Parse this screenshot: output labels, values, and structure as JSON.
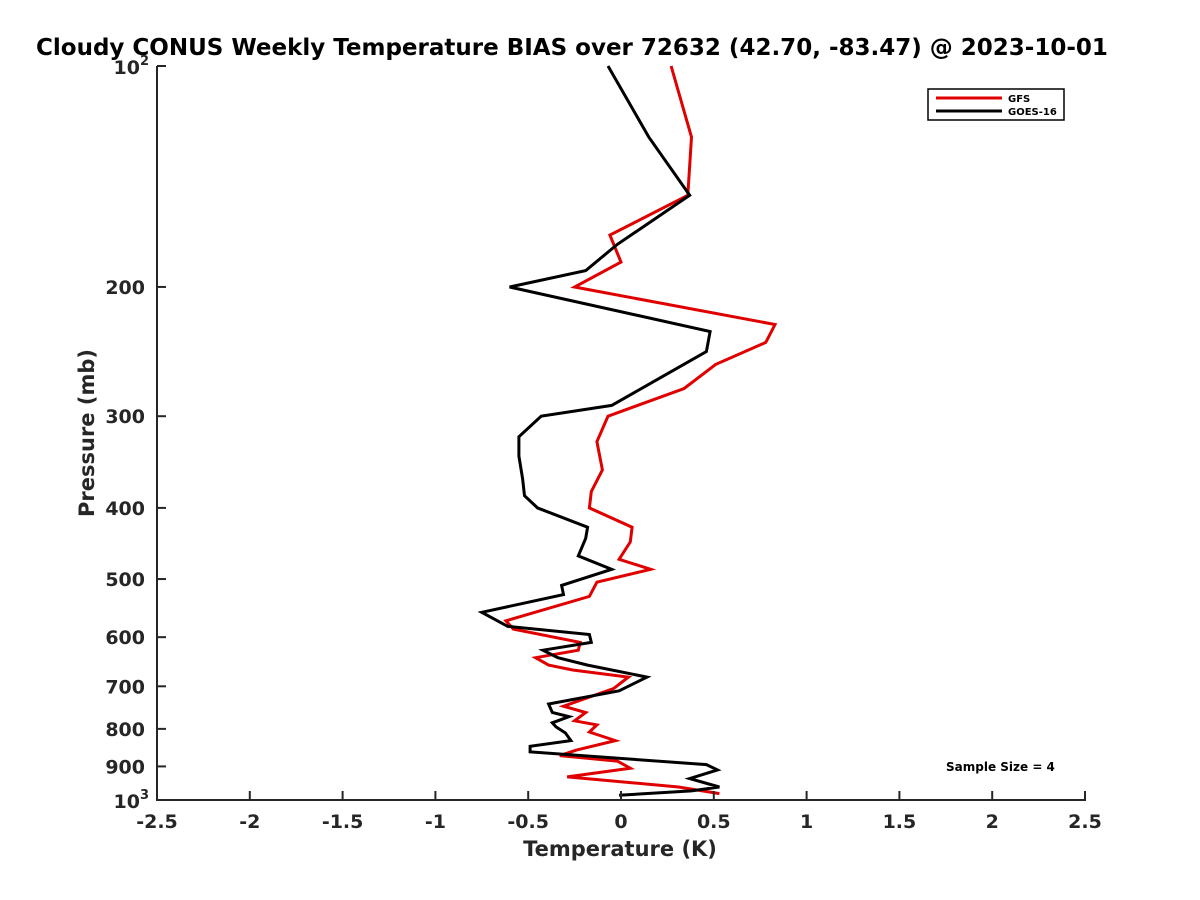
{
  "chart_data": {
    "type": "line",
    "title": "Cloudy CONUS Weekly Temperature BIAS over 72632 (42.70, -83.47) @ 2023-10-01",
    "xlabel": "Temperature (K)",
    "ylabel": "Pressure (mb)",
    "xlim": [
      -2.5,
      2.5
    ],
    "ylim": [
      1000,
      100
    ],
    "y_scale": "log",
    "y_reversed": true,
    "grid": false,
    "legend_position": "top-right",
    "annotation": "Sample Size = 4",
    "x_ticks": [
      {
        "value": -2.5,
        "label": "-2.5"
      },
      {
        "value": -2,
        "label": "-2"
      },
      {
        "value": -1.5,
        "label": "-1.5"
      },
      {
        "value": -1,
        "label": "-1"
      },
      {
        "value": -0.5,
        "label": "-0.5"
      },
      {
        "value": 0,
        "label": "0"
      },
      {
        "value": 0.5,
        "label": "0.5"
      },
      {
        "value": 1,
        "label": "1"
      },
      {
        "value": 1.5,
        "label": "1.5"
      },
      {
        "value": 2,
        "label": "2"
      },
      {
        "value": 2.5,
        "label": "2.5"
      }
    ],
    "y_ticks": [
      {
        "value": 100,
        "base": "10",
        "exp": "2"
      },
      {
        "value": 200,
        "label": "200"
      },
      {
        "value": 300,
        "label": "300"
      },
      {
        "value": 400,
        "label": "400"
      },
      {
        "value": 500,
        "label": "500"
      },
      {
        "value": 600,
        "label": "600"
      },
      {
        "value": 700,
        "label": "700"
      },
      {
        "value": 800,
        "label": "800"
      },
      {
        "value": 900,
        "label": "900"
      },
      {
        "value": 1000,
        "base": "10",
        "exp": "3"
      }
    ],
    "series": [
      {
        "name": "GFS",
        "color": "#e00000",
        "points": [
          [
            0.27,
            100
          ],
          [
            0.38,
            125
          ],
          [
            0.36,
            150
          ],
          [
            -0.06,
            170
          ],
          [
            0.0,
            185
          ],
          [
            -0.25,
            200
          ],
          [
            0.83,
            225
          ],
          [
            0.78,
            238
          ],
          [
            0.51,
            255
          ],
          [
            0.34,
            275
          ],
          [
            -0.07,
            300
          ],
          [
            -0.13,
            325
          ],
          [
            -0.1,
            355
          ],
          [
            -0.16,
            380
          ],
          [
            -0.17,
            400
          ],
          [
            0.06,
            425
          ],
          [
            0.05,
            445
          ],
          [
            -0.01,
            470
          ],
          [
            0.16,
            485
          ],
          [
            -0.13,
            505
          ],
          [
            -0.17,
            528
          ],
          [
            -0.62,
            570
          ],
          [
            -0.58,
            585
          ],
          [
            -0.22,
            610
          ],
          [
            -0.23,
            625
          ],
          [
            -0.46,
            640
          ],
          [
            -0.39,
            655
          ],
          [
            -0.26,
            665
          ],
          [
            0.04,
            680
          ],
          [
            -0.04,
            705
          ],
          [
            -0.31,
            745
          ],
          [
            -0.19,
            760
          ],
          [
            -0.25,
            780
          ],
          [
            -0.13,
            790
          ],
          [
            -0.17,
            808
          ],
          [
            -0.03,
            830
          ],
          [
            -0.24,
            855
          ],
          [
            -0.33,
            870
          ],
          [
            -0.02,
            885
          ],
          [
            0.05,
            905
          ],
          [
            -0.29,
            930
          ],
          [
            0.31,
            960
          ],
          [
            0.53,
            980
          ]
        ]
      },
      {
        "name": "GOES-16",
        "color": "#000000",
        "points": [
          [
            -0.07,
            100
          ],
          [
            0.15,
            125
          ],
          [
            0.37,
            150
          ],
          [
            -0.02,
            175
          ],
          [
            -0.19,
            190
          ],
          [
            -0.6,
            200
          ],
          [
            0.48,
            230
          ],
          [
            0.46,
            245
          ],
          [
            -0.05,
            290
          ],
          [
            -0.43,
            300
          ],
          [
            -0.55,
            320
          ],
          [
            -0.55,
            340
          ],
          [
            -0.53,
            365
          ],
          [
            -0.52,
            385
          ],
          [
            -0.45,
            400
          ],
          [
            -0.18,
            425
          ],
          [
            -0.19,
            440
          ],
          [
            -0.23,
            465
          ],
          [
            -0.05,
            485
          ],
          [
            -0.32,
            510
          ],
          [
            -0.31,
            525
          ],
          [
            -0.75,
            555
          ],
          [
            -0.61,
            580
          ],
          [
            -0.17,
            595
          ],
          [
            -0.16,
            610
          ],
          [
            -0.42,
            625
          ],
          [
            -0.34,
            640
          ],
          [
            -0.18,
            655
          ],
          [
            0.14,
            680
          ],
          [
            -0.01,
            710
          ],
          [
            -0.39,
            740
          ],
          [
            -0.37,
            760
          ],
          [
            -0.28,
            770
          ],
          [
            -0.37,
            785
          ],
          [
            -0.35,
            795
          ],
          [
            -0.3,
            810
          ],
          [
            -0.27,
            830
          ],
          [
            -0.49,
            845
          ],
          [
            -0.49,
            860
          ],
          [
            0.46,
            895
          ],
          [
            0.52,
            910
          ],
          [
            0.37,
            935
          ],
          [
            0.53,
            960
          ],
          [
            0.38,
            972
          ],
          [
            -0.01,
            985
          ]
        ]
      }
    ]
  }
}
